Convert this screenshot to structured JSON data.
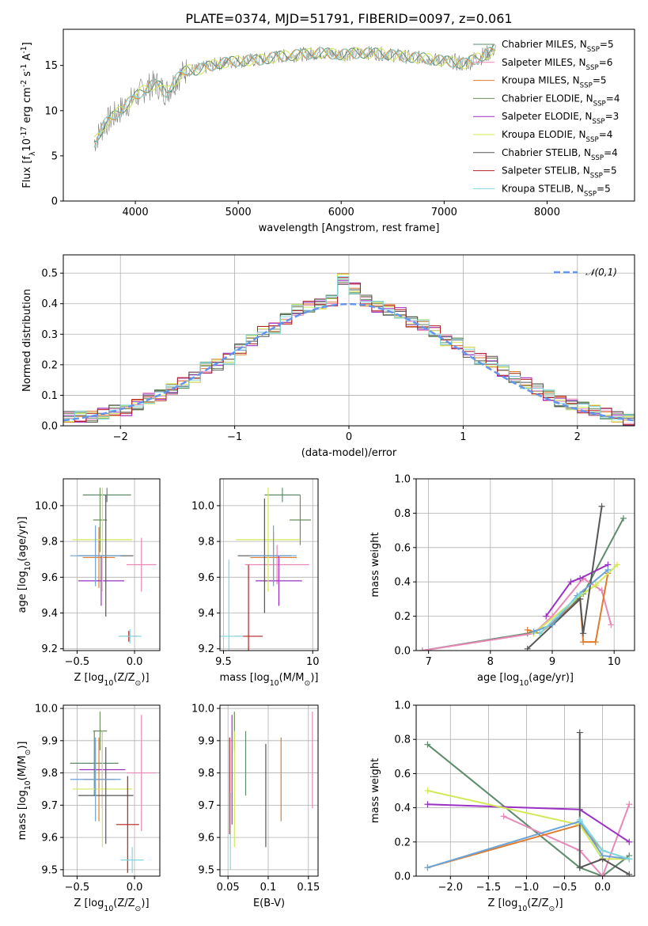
{
  "chart_data": [
    {
      "id": "spectrum",
      "type": "line",
      "title": "PLATE=0374, MJD=51791, FIBERID=0097, z=0.061",
      "xlabel": "wavelength [Angstrom, rest frame]",
      "ylabel": "Flux [f$_\\lambda$10$^{-17}$ erg cm$^{-2}$ s$^{-1}$ A$^{-1}$]",
      "xlim": [
        3300,
        8850
      ],
      "ylim": [
        0,
        19
      ],
      "xticks": [
        4000,
        5000,
        6000,
        7000,
        8000
      ],
      "yticks": [
        0,
        5,
        10,
        15
      ],
      "grid": false,
      "legend_position": "right",
      "data_series": {
        "name": "",
        "color": "#808080",
        "x": [
          3600,
          3700,
          3800,
          3900,
          4000,
          4100,
          4200,
          4300,
          4400,
          4500,
          4600,
          4800,
          5000,
          5200,
          5400,
          5600,
          5800,
          6000,
          6200,
          6400,
          6600,
          6800,
          7000,
          7200,
          7400,
          7500
        ],
        "y": [
          6.5,
          8.5,
          9.5,
          10.5,
          11.5,
          12.5,
          13.0,
          12.0,
          13.5,
          14.5,
          14.5,
          15.2,
          15.5,
          15.6,
          16.0,
          16.2,
          16.4,
          16.2,
          16.4,
          16.3,
          16.0,
          15.8,
          15.5,
          15.2,
          16.2,
          16.8
        ]
      },
      "series": [
        {
          "name": "Chabrier MILES, N$_{SSP}$=5",
          "color": "#5e8c6a"
        },
        {
          "name": "Salpeter MILES, N$_{SSP}$=6",
          "color": "#e887b8"
        },
        {
          "name": "Kroupa MILES, N$_{SSP}$=5",
          "color": "#e07b2d"
        },
        {
          "name": "Chabrier ELODIE, N$_{SSP}$=4",
          "color": "#6d8f5c"
        },
        {
          "name": "Salpeter ELODIE, N$_{SSP}$=3",
          "color": "#9b30c4"
        },
        {
          "name": "Kroupa ELODIE, N$_{SSP}$=4",
          "color": "#d4e85a"
        },
        {
          "name": "Chabrier STELIB, N$_{SSP}$=4",
          "color": "#555555"
        },
        {
          "name": "Salpeter STELIB, N$_{SSP}$=5",
          "color": "#b22222"
        },
        {
          "name": "Kroupa STELIB, N$_{SSP}$=5",
          "color": "#7fd8e0"
        }
      ]
    },
    {
      "id": "residuals",
      "type": "line",
      "xlabel": "(data-model)/error",
      "ylabel": "Normed distribution",
      "xlim": [
        -2.5,
        2.5
      ],
      "ylim": [
        0,
        0.56
      ],
      "xticks": [
        -2,
        -1,
        0,
        1,
        2
      ],
      "yticks": [
        0.0,
        0.1,
        0.2,
        0.3,
        0.4,
        0.5
      ],
      "grid": true,
      "legend": "$\\mathcal{N}(0,1)$",
      "legend_position": "top-right",
      "histogram_x": [
        -2.45,
        -2.35,
        -2.25,
        -2.15,
        -2.05,
        -1.95,
        -1.85,
        -1.75,
        -1.65,
        -1.55,
        -1.45,
        -1.35,
        -1.25,
        -1.15,
        -1.05,
        -0.95,
        -0.85,
        -0.75,
        -0.65,
        -0.55,
        -0.45,
        -0.35,
        -0.25,
        -0.15,
        -0.05,
        0.05,
        0.15,
        0.25,
        0.35,
        0.45,
        0.55,
        0.65,
        0.75,
        0.85,
        0.95,
        1.05,
        1.15,
        1.25,
        1.35,
        1.45,
        1.55,
        1.65,
        1.75,
        1.85,
        1.95,
        2.05,
        2.15,
        2.25,
        2.35,
        2.45
      ],
      "histogram_y": [
        0.03,
        0.03,
        0.03,
        0.04,
        0.05,
        0.05,
        0.07,
        0.09,
        0.1,
        0.12,
        0.14,
        0.16,
        0.19,
        0.2,
        0.22,
        0.25,
        0.28,
        0.31,
        0.32,
        0.35,
        0.38,
        0.39,
        0.4,
        0.41,
        0.48,
        0.45,
        0.41,
        0.39,
        0.38,
        0.37,
        0.34,
        0.33,
        0.31,
        0.28,
        0.27,
        0.24,
        0.22,
        0.21,
        0.18,
        0.16,
        0.14,
        0.12,
        0.1,
        0.08,
        0.07,
        0.06,
        0.05,
        0.04,
        0.03,
        0.02
      ]
    },
    {
      "id": "z-age",
      "type": "scatter",
      "xlabel": "Z [log$_{10}$(Z/Z$_\\odot$)]",
      "ylabel": "age  [log$_{10}$(age/yr)]",
      "xlim": [
        -0.62,
        0.22
      ],
      "ylim": [
        9.19,
        10.15
      ],
      "xticks": [
        -0.5,
        0.0
      ],
      "xticklabels": [
        "−0.5",
        "0.0"
      ],
      "yticks": [
        9.2,
        9.4,
        9.6,
        9.8,
        10.0
      ],
      "grid": true,
      "points": [
        {
          "x": -0.24,
          "y": 10.06,
          "xerr": 0.21,
          "yerr": 0.04,
          "color": "#5e8c6a"
        },
        {
          "x": 0.06,
          "y": 9.67,
          "xerr": 0.13,
          "yerr": 0.15,
          "color": "#e887b8"
        },
        {
          "x": -0.31,
          "y": 9.71,
          "xerr": 0.14,
          "yerr": 0.17,
          "color": "#e07b2d"
        },
        {
          "x": -0.3,
          "y": 9.92,
          "xerr": 0.06,
          "yerr": 0.18,
          "color": "#6d8f5c"
        },
        {
          "x": -0.29,
          "y": 9.58,
          "xerr": 0.2,
          "yerr": 0.14,
          "color": "#9b30c4"
        },
        {
          "x": -0.28,
          "y": 9.81,
          "xerr": 0.26,
          "yerr": 0.29,
          "color": "#d4e85a"
        },
        {
          "x": -0.25,
          "y": 9.72,
          "xerr": 0.24,
          "yerr": 0.34,
          "color": "#555555"
        },
        {
          "x": -0.05,
          "y": 9.27,
          "xerr": 0.08,
          "yerr": 0.03,
          "color": "#b22222"
        },
        {
          "x": -0.04,
          "y": 9.27,
          "xerr": 0.1,
          "yerr": 0.04,
          "color": "#7fd8e0"
        },
        {
          "x": -0.34,
          "y": 9.72,
          "xerr": 0.22,
          "yerr": 0.17,
          "color": "#6ca3d6"
        }
      ]
    },
    {
      "id": "mass-age",
      "type": "scatter",
      "xlabel": "mass [log$_{10}$(M/M$_\\odot$)]",
      "ylabel": "",
      "xlim": [
        9.48,
        10.03
      ],
      "ylim": [
        9.19,
        10.15
      ],
      "xticks": [
        9.5,
        10.0
      ],
      "yticks": [
        9.2,
        9.4,
        9.6,
        9.8,
        10.0
      ],
      "grid": true,
      "points": [
        {
          "x": 9.83,
          "y": 10.06,
          "xerr": 0.1,
          "yerr": 0.04,
          "color": "#5e8c6a"
        },
        {
          "x": 9.8,
          "y": 9.67,
          "xerr": 0.18,
          "yerr": 0.11,
          "color": "#e887b8"
        },
        {
          "x": 9.78,
          "y": 9.71,
          "xerr": 0.13,
          "yerr": 0.14,
          "color": "#e07b2d"
        },
        {
          "x": 9.93,
          "y": 9.92,
          "xerr": 0.06,
          "yerr": 0.14,
          "color": "#6d8f5c"
        },
        {
          "x": 9.81,
          "y": 9.58,
          "xerr": 0.13,
          "yerr": 0.14,
          "color": "#9b30c4"
        },
        {
          "x": 9.75,
          "y": 9.81,
          "xerr": 0.18,
          "yerr": 0.29,
          "color": "#d4e85a"
        },
        {
          "x": 9.73,
          "y": 9.72,
          "xerr": 0.15,
          "yerr": 0.32,
          "color": "#555555"
        },
        {
          "x": 9.64,
          "y": 9.27,
          "xerr": 0.08,
          "yerr": 0.4,
          "color": "#b22222"
        },
        {
          "x": 9.53,
          "y": 9.27,
          "xerr": 0.08,
          "yerr": 0.43,
          "color": "#7fd8e0"
        },
        {
          "x": 9.78,
          "y": 9.72,
          "xerr": 0.13,
          "yerr": 0.17,
          "color": "#6ca3d6"
        }
      ]
    },
    {
      "id": "age-weight",
      "type": "line",
      "xlabel": "age  [log$_{10}$(age/yr)]",
      "ylabel": "mass weight",
      "xlim": [
        6.8,
        10.33
      ],
      "ylim": [
        0,
        1.0
      ],
      "xticks": [
        7,
        8,
        9,
        10
      ],
      "yticks": [
        0.0,
        0.2,
        0.4,
        0.6,
        0.8,
        1.0
      ],
      "grid": true,
      "series": [
        {
          "color": "#5e8c6a",
          "x": [
            6.9,
            8.6,
            9.0,
            9.5,
            10.15
          ],
          "y": [
            0.0,
            0.1,
            0.15,
            0.33,
            0.77
          ]
        },
        {
          "color": "#e887b8",
          "x": [
            6.9,
            8.7,
            9.0,
            9.5,
            9.8,
            9.95
          ],
          "y": [
            0.0,
            0.1,
            0.2,
            0.42,
            0.35,
            0.15
          ]
        },
        {
          "color": "#e07b2d",
          "x": [
            8.6,
            8.8,
            9.45,
            9.5,
            9.7,
            9.9
          ],
          "y": [
            0.12,
            0.1,
            0.3,
            0.05,
            0.05,
            0.45
          ]
        },
        {
          "color": "#9b30c4",
          "x": [
            8.9,
            9.3,
            9.45,
            9.9
          ],
          "y": [
            0.2,
            0.4,
            0.42,
            0.5
          ]
        },
        {
          "color": "#d4e85a",
          "x": [
            8.7,
            9.45,
            9.7,
            10.05
          ],
          "y": [
            0.1,
            0.32,
            0.38,
            0.5
          ]
        },
        {
          "color": "#555555",
          "x": [
            8.6,
            9.45,
            9.5,
            9.8
          ],
          "y": [
            0.01,
            0.3,
            0.1,
            0.84
          ]
        },
        {
          "color": "#6ca3d6",
          "x": [
            8.7,
            9.0,
            9.4,
            9.9
          ],
          "y": [
            0.11,
            0.15,
            0.32,
            0.47
          ]
        },
        {
          "color": "#7fd8e0",
          "x": [
            8.8,
            9.45
          ],
          "y": [
            0.1,
            0.33
          ]
        }
      ]
    },
    {
      "id": "z-mass",
      "type": "scatter",
      "xlabel": "Z [log$_{10}$(Z/Z$_\\odot$)]",
      "ylabel": "mass [log$_{10}$(M/M$_\\odot$)]",
      "xlim": [
        -0.62,
        0.22
      ],
      "ylim": [
        9.48,
        10.01
      ],
      "xticks": [
        -0.5,
        0.0
      ],
      "xticklabels": [
        "−0.5",
        "0.0"
      ],
      "yticks": [
        9.5,
        9.6,
        9.7,
        9.8,
        9.9,
        10.0
      ],
      "grid": true,
      "points": [
        {
          "x": -0.35,
          "y": 9.83,
          "xerr": 0.21,
          "yerr": 0.1,
          "color": "#5e8c6a"
        },
        {
          "x": 0.06,
          "y": 9.8,
          "xerr": 0.13,
          "yerr": 0.18,
          "color": "#e887b8"
        },
        {
          "x": -0.31,
          "y": 9.78,
          "xerr": 0.14,
          "yerr": 0.13,
          "color": "#e07b2d"
        },
        {
          "x": -0.3,
          "y": 9.93,
          "xerr": 0.06,
          "yerr": 0.06,
          "color": "#6d8f5c"
        },
        {
          "x": -0.28,
          "y": 9.81,
          "xerr": 0.2,
          "yerr": 0.12,
          "color": "#9b30c4"
        },
        {
          "x": -0.28,
          "y": 9.75,
          "xerr": 0.26,
          "yerr": 0.18,
          "color": "#d4e85a"
        },
        {
          "x": -0.25,
          "y": 9.73,
          "xerr": 0.24,
          "yerr": 0.15,
          "color": "#555555"
        },
        {
          "x": -0.06,
          "y": 9.64,
          "xerr": 0.1,
          "yerr": 0.15,
          "color": "#b22222"
        },
        {
          "x": -0.02,
          "y": 9.53,
          "xerr": 0.1,
          "yerr": 0.04,
          "color": "#7fd8e0"
        },
        {
          "x": -0.34,
          "y": 9.78,
          "xerr": 0.22,
          "yerr": 0.13,
          "color": "#6ca3d6"
        }
      ]
    },
    {
      "id": "ebv-mass",
      "type": "scatter",
      "xlabel": "E(B-V)",
      "ylabel": "",
      "xlim": [
        0.04,
        0.162
      ],
      "ylim": [
        9.48,
        10.01
      ],
      "xticks": [
        0.05,
        0.1,
        0.15
      ],
      "yticks": [
        9.5,
        9.6,
        9.7,
        9.8,
        9.9,
        10.0
      ],
      "grid": true,
      "points": [
        {
          "x": 0.072,
          "y": 9.83,
          "xerr": 0,
          "yerr": 0.1,
          "color": "#5e8c6a"
        },
        {
          "x": 0.155,
          "y": 9.84,
          "xerr": 0,
          "yerr": 0.15,
          "color": "#e887b8"
        },
        {
          "x": 0.116,
          "y": 9.78,
          "xerr": 0,
          "yerr": 0.13,
          "color": "#e07b2d"
        },
        {
          "x": 0.058,
          "y": 9.93,
          "xerr": 0,
          "yerr": 0.06,
          "color": "#6d8f5c"
        },
        {
          "x": 0.055,
          "y": 9.81,
          "xerr": 0,
          "yerr": 0.17,
          "color": "#9b30c4"
        },
        {
          "x": 0.058,
          "y": 9.75,
          "xerr": 0,
          "yerr": 0.18,
          "color": "#d4e85a"
        },
        {
          "x": 0.097,
          "y": 9.73,
          "xerr": 0,
          "yerr": 0.16,
          "color": "#555555"
        },
        {
          "x": 0.052,
          "y": 9.76,
          "xerr": 0,
          "yerr": 0.15,
          "color": "#b22222"
        },
        {
          "x": 0.053,
          "y": 9.62,
          "xerr": 0,
          "yerr": 0.12,
          "color": "#7fd8e0"
        }
      ]
    },
    {
      "id": "z-weight",
      "type": "line",
      "xlabel": "Z [log$_{10}$(Z/Z$_\\odot$)]",
      "ylabel": "mass weight",
      "xlim": [
        -2.45,
        0.42
      ],
      "ylim": [
        0,
        1.0
      ],
      "xticks": [
        -2.0,
        -1.5,
        -1.0,
        -0.5,
        0.0
      ],
      "xticklabels": [
        "−2.0",
        "−1.5",
        "−1.0",
        "−0.5",
        "0.0"
      ],
      "yticks": [
        0.0,
        0.2,
        0.4,
        0.6,
        0.8,
        1.0
      ],
      "grid": true,
      "series": [
        {
          "color": "#5e8c6a",
          "x": [
            -2.3,
            -0.3,
            0.0,
            0.35
          ],
          "y": [
            0.77,
            0.05,
            0.0,
            0.12
          ]
        },
        {
          "color": "#e887b8",
          "x": [
            -1.3,
            -0.3,
            0.0,
            0.35
          ],
          "y": [
            0.35,
            0.15,
            0.0,
            0.42
          ]
        },
        {
          "color": "#e07b2d",
          "x": [
            -2.3,
            -0.3,
            0.0,
            0.35
          ],
          "y": [
            0.05,
            0.3,
            0.15,
            0.1
          ]
        },
        {
          "color": "#9b30c4",
          "x": [
            -2.3,
            -0.3,
            0.35
          ],
          "y": [
            0.42,
            0.39,
            0.2
          ]
        },
        {
          "color": "#d4e85a",
          "x": [
            -2.3,
            -0.3,
            0.0,
            0.35
          ],
          "y": [
            0.5,
            0.3,
            0.1,
            0.1
          ]
        },
        {
          "color": "#555555",
          "x": [
            -0.3,
            -0.3,
            0.0,
            0.35
          ],
          "y": [
            0.84,
            0.05,
            0.1,
            0.01
          ]
        },
        {
          "color": "#6ca3d6",
          "x": [
            -2.3,
            -0.3,
            0.0,
            0.35
          ],
          "y": [
            0.05,
            0.32,
            0.12,
            0.1
          ]
        },
        {
          "color": "#7fd8e0",
          "x": [
            -0.3,
            0.0,
            0.35
          ],
          "y": [
            0.33,
            0.15,
            0.1
          ]
        }
      ]
    }
  ]
}
